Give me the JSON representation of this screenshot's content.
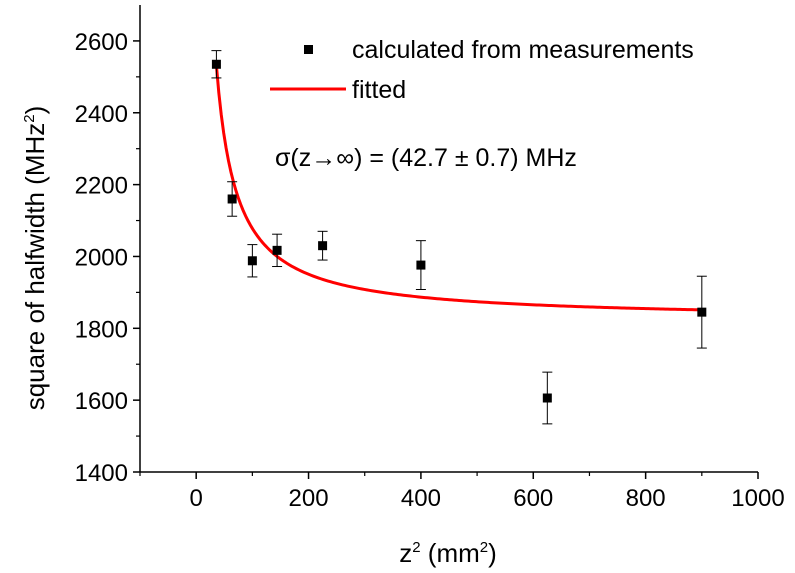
{
  "chart_data": {
    "type": "scatter",
    "xlabel": {
      "base": "z",
      "exp": "2",
      "unit": " (mm",
      "unit_exp": "2",
      "close": ")"
    },
    "ylabel": {
      "text": "square of halfwidth (MHz",
      "exp": "2",
      "close": ")"
    },
    "xlim": [
      -100,
      1000
    ],
    "ylim": [
      1400,
      2700
    ],
    "xticks": [
      0,
      200,
      400,
      600,
      800,
      1000
    ],
    "yticks": [
      1400,
      1600,
      1800,
      2000,
      2200,
      2400,
      2600
    ],
    "series": [
      {
        "name": "calculated from measurements",
        "kind": "points",
        "x": [
          36,
          64,
          100,
          144,
          225,
          400,
          625,
          900
        ],
        "y": [
          2535,
          2160,
          1988,
          2017,
          2030,
          1976,
          1606,
          1845
        ],
        "err": [
          38,
          48,
          45,
          45,
          40,
          68,
          72,
          100
        ],
        "color": "#000000"
      },
      {
        "name": "fitted",
        "kind": "line",
        "model": "sigma^2 + a/x",
        "params": {
          "sigma2": 1823,
          "a": 25500
        },
        "x_range": [
          36,
          900
        ],
        "color": "#ff0000"
      }
    ],
    "annotation": "σ(z→∞) = (42.7 ± 0.7) MHz",
    "legend_position": "top-right",
    "grid": false
  }
}
